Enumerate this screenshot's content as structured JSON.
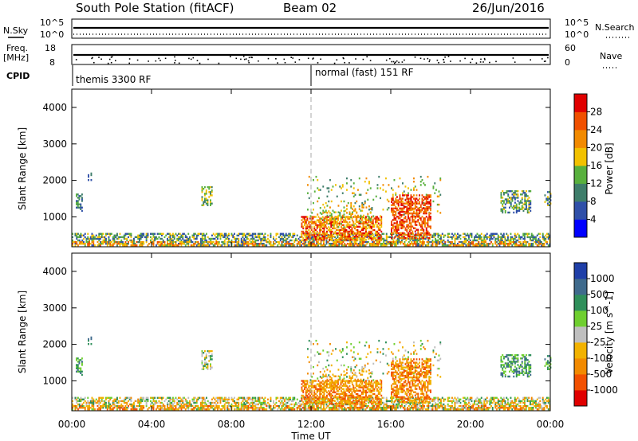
{
  "header": {
    "station": "South Pole Station (fitACF)",
    "beam": "Beam 02",
    "date": "26/Jun/2016"
  },
  "status_panel": {
    "nsky_label": "N.Sky",
    "freq_label_1": "Freq.",
    "freq_label_2": "[MHz]",
    "cpid_label": "CPID",
    "nsearch_label": "N.Search",
    "nave_label": "Nave",
    "left_ticks_top": [
      "10^5",
      "10^0"
    ],
    "left_ticks_freq": [
      "18",
      "8"
    ],
    "right_ticks_top": [
      "10^5",
      "10^0"
    ],
    "right_ticks_nave": [
      "60",
      "0"
    ],
    "cpid_1": "themis 3300 RF",
    "cpid_2": "normal (fast) 151 RF"
  },
  "colors": {
    "power_scale": [
      "#0000ff",
      "#2f4fa8",
      "#3e7d6a",
      "#58b03d",
      "#f2c100",
      "#f28a00",
      "#f05000",
      "#e00000"
    ],
    "velocity_scale": [
      "#1f3fa8",
      "#3f6a8c",
      "#2f8f5a",
      "#6fcf2f",
      "#bfbfbf",
      "#f2b200",
      "#f28a00",
      "#f25000",
      "#e00000"
    ],
    "gridline": "#aaaaaa"
  },
  "chart_data": [
    {
      "type": "heatmap",
      "title": "",
      "xlabel": "",
      "ylabel": "Slant Range [km]",
      "ylim": [
        180,
        4500
      ],
      "xlim": [
        0,
        24
      ],
      "yticks": [
        "1000",
        "2000",
        "3000",
        "4000"
      ],
      "colorbar": {
        "label": "Power [dB]",
        "ticks": [
          "4",
          "8",
          "12",
          "16",
          "20",
          "24",
          "28"
        ],
        "range": [
          0,
          30
        ]
      },
      "grid": false,
      "features": [
        {
          "t_start": 0.0,
          "t_end": 24.0,
          "r_low": 200,
          "r_high": 500,
          "level": "8-20"
        },
        {
          "t_start": 11.5,
          "t_end": 15.5,
          "r_low": 350,
          "r_high": 1000,
          "level": "16-28"
        },
        {
          "t_start": 16.0,
          "t_end": 18.0,
          "r_low": 400,
          "r_high": 1600,
          "level": "20-28"
        },
        {
          "t_start": 21.5,
          "t_end": 23.0,
          "r_low": 1100,
          "r_high": 1700,
          "level": "8-20"
        },
        {
          "t_start": 0.2,
          "t_end": 0.5,
          "r_low": 1100,
          "r_high": 1600,
          "level": "8-16"
        },
        {
          "t_start": 6.5,
          "t_end": 7.0,
          "r_low": 1300,
          "r_high": 1800,
          "level": "8-16"
        },
        {
          "t_start": 23.7,
          "t_end": 24.0,
          "r_low": 1300,
          "r_high": 1700,
          "level": "8-16"
        }
      ]
    },
    {
      "type": "heatmap",
      "title": "",
      "xlabel": "Time UT",
      "ylabel": "Slant Range [km]",
      "ylim": [
        180,
        4500
      ],
      "xlim": [
        0,
        24
      ],
      "xticks": [
        "00:00",
        "04:00",
        "08:00",
        "12:00",
        "16:00",
        "20:00",
        "00:00"
      ],
      "yticks": [
        "1000",
        "2000",
        "3000",
        "4000"
      ],
      "colorbar": {
        "label": "Velocity [m s^-1]",
        "ticks": [
          "1000",
          "500",
          "100",
          "25",
          "-25",
          "-100",
          "-500",
          "-1000"
        ],
        "range": [
          -1000,
          1000
        ]
      },
      "grid": false,
      "features": [
        {
          "t_start": 0.0,
          "t_end": 24.0,
          "r_low": 200,
          "r_high": 500,
          "level": "-100..100"
        },
        {
          "t_start": 11.5,
          "t_end": 15.5,
          "r_low": 350,
          "r_high": 1000,
          "level": "-500..-100"
        },
        {
          "t_start": 16.0,
          "t_end": 18.0,
          "r_low": 400,
          "r_high": 1600,
          "level": "-500..-100"
        },
        {
          "t_start": 21.5,
          "t_end": 23.0,
          "r_low": 1100,
          "r_high": 1700,
          "level": "100..500"
        }
      ]
    }
  ]
}
